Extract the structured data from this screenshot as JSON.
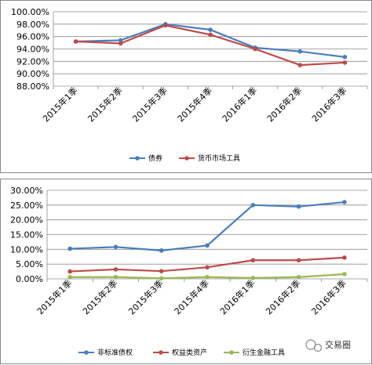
{
  "chart_data": [
    {
      "type": "line",
      "categories": [
        "2015年1季",
        "2015年2季",
        "2015年3季",
        "2015年4季",
        "2016年1季",
        "2016年2季",
        "2016年3季"
      ],
      "ylim": [
        88,
        100
      ],
      "yticks": [
        "88.00%",
        "90.00%",
        "92.00%",
        "94.00%",
        "96.00%",
        "98.00%",
        "100.00%"
      ],
      "grid": true,
      "legend": "bottom",
      "series": [
        {
          "name": "债券",
          "color": "#4a7ebb",
          "values": [
            95.2,
            95.4,
            98.0,
            97.1,
            94.2,
            93.6,
            92.7
          ]
        },
        {
          "name": "货币市场工具",
          "color": "#be4b48",
          "values": [
            95.2,
            94.9,
            97.8,
            96.3,
            94.0,
            91.4,
            91.8
          ]
        }
      ]
    },
    {
      "type": "line",
      "categories": [
        "2015年1季",
        "2015年2季",
        "2015年3季",
        "2015年4季",
        "2016年1季",
        "2016年2季",
        "2016年3季"
      ],
      "ylim": [
        0,
        30
      ],
      "yticks": [
        "0.00%",
        "5.00%",
        "10.00%",
        "15.00%",
        "20.00%",
        "25.00%",
        "30.00%"
      ],
      "grid": true,
      "legend": "bottom",
      "series": [
        {
          "name": "非标准债权",
          "color": "#4a7ebb",
          "values": [
            10.2,
            10.8,
            9.6,
            11.3,
            25.0,
            24.5,
            26.0
          ]
        },
        {
          "name": "权益类资产",
          "color": "#be4b48",
          "values": [
            2.5,
            3.2,
            2.6,
            3.9,
            6.3,
            6.3,
            7.2
          ]
        },
        {
          "name": "衍生金融工具",
          "color": "#98b954",
          "values": [
            0.6,
            0.6,
            0.2,
            0.6,
            0.3,
            0.6,
            1.6
          ]
        }
      ]
    }
  ],
  "watermark": {
    "text": "交易圈"
  }
}
